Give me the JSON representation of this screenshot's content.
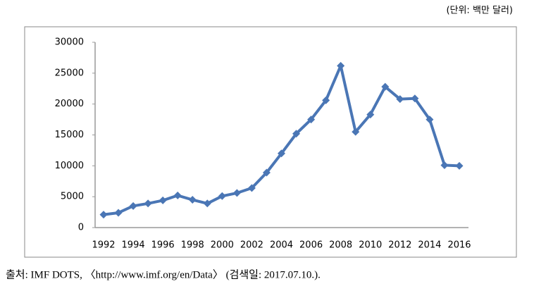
{
  "chart_data": {
    "type": "line",
    "unit_note": "(단위: 백만 달러)",
    "source": "출처: IMF DOTS, 〈http://www.imf.org/en/Data〉 (검색일: 2017.07.10.).",
    "categories": [
      "1992",
      null,
      "1994",
      null,
      "1996",
      null,
      "1998",
      null,
      "2000",
      null,
      "2002",
      null,
      "2004",
      null,
      "2006",
      null,
      "2008",
      null,
      "2010",
      null,
      "2012",
      null,
      "2014",
      null,
      "2016"
    ],
    "series": [
      {
        "color": "#4a76b5",
        "values": [
          2100,
          2400,
          3500,
          3900,
          4400,
          5200,
          4500,
          3900,
          5100,
          5600,
          6400,
          8900,
          12000,
          15200,
          17500,
          20600,
          26200,
          15500,
          18300,
          22800,
          20800,
          20900,
          17500,
          10100,
          10000
        ]
      }
    ],
    "ylim": [
      0,
      30000
    ],
    "yticks": [
      0,
      5000,
      10000,
      15000,
      20000,
      25000,
      30000
    ],
    "grid": false
  }
}
